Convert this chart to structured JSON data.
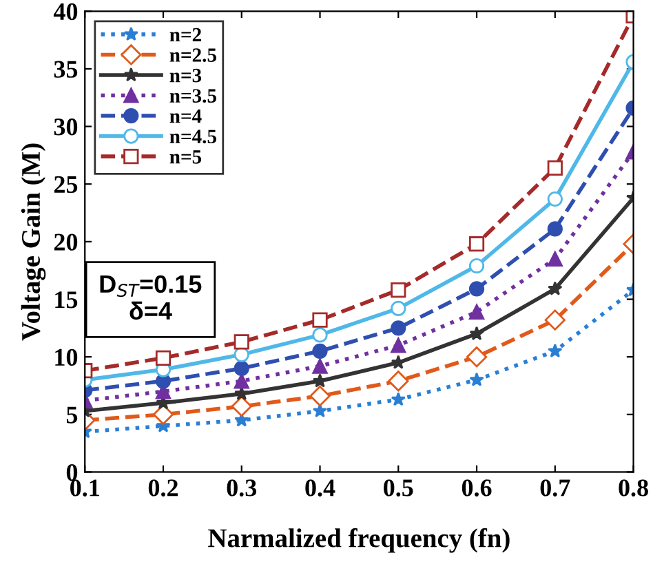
{
  "chart_data": {
    "type": "line",
    "xlabel": "Narmalized frequency (fn)",
    "ylabel": "Voltage Gain (M)",
    "x": [
      0.1,
      0.2,
      0.3,
      0.4,
      0.5,
      0.6,
      0.7,
      0.8
    ],
    "xlim": [
      0.1,
      0.8
    ],
    "xticks": [
      0.1,
      0.2,
      0.3,
      0.4,
      0.5,
      0.6,
      0.7,
      0.8
    ],
    "ylim": [
      0,
      40
    ],
    "yticks": [
      0,
      5,
      10,
      15,
      20,
      25,
      30,
      35,
      40
    ],
    "grid": false,
    "legend": "top left",
    "annotations": [
      "D$_{ST}$=0.15\nδ=4"
    ],
    "series": [
      {
        "name": "n=2",
        "color": "#2a7fd4",
        "marker": "star",
        "line_style": "dotted",
        "values": [
          3.5,
          4,
          4.5,
          5.3,
          6.3,
          8,
          10.5,
          15.8
        ]
      },
      {
        "name": "n=2.5",
        "color": "#e05a1a",
        "marker": "diamond",
        "line_style": "dashed",
        "values": [
          4.5,
          5,
          5.7,
          6.6,
          7.9,
          10,
          13.2,
          19.8
        ]
      },
      {
        "name": "n=3",
        "color": "#333333",
        "marker": "star",
        "line_style": "solid",
        "values": [
          5.3,
          6,
          6.8,
          7.9,
          9.5,
          12,
          15.9,
          23.8
        ]
      },
      {
        "name": "n=3.5",
        "color": "#7030a0",
        "marker": "triangle",
        "line_style": "dotted",
        "values": [
          6.2,
          7,
          7.9,
          9.2,
          11,
          13.9,
          18.5,
          27.8
        ]
      },
      {
        "name": "n=4",
        "color": "#2f4fb0",
        "marker": "circle",
        "line_style": "dashed",
        "values": [
          7.1,
          7.9,
          9,
          10.5,
          12.5,
          15.9,
          21.1,
          31.6
        ]
      },
      {
        "name": "n=4.5",
        "color": "#4fb8e8",
        "marker": "circle",
        "line_style": "solid",
        "values": [
          8,
          8.9,
          10.2,
          11.9,
          14.2,
          17.9,
          23.7,
          35.6
        ]
      },
      {
        "name": "n=5",
        "color": "#a52a2a",
        "marker": "square",
        "line_style": "dashed",
        "values": [
          8.8,
          9.9,
          11.3,
          13.2,
          15.8,
          19.8,
          26.4,
          39.6
        ]
      }
    ]
  }
}
